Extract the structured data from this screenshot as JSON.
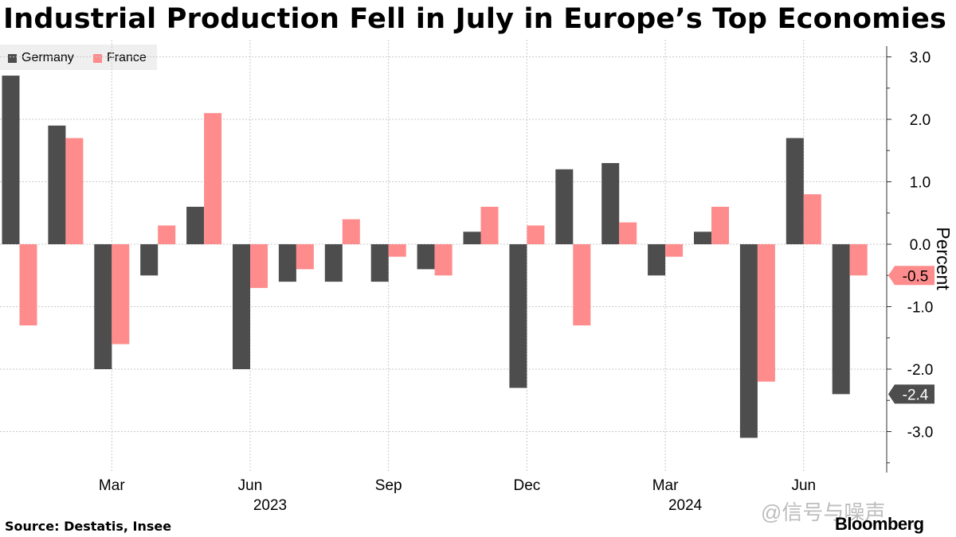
{
  "title": "Industrial Production Fell in July in Europe’s Top Economies",
  "source": "Source: Destatis, Insee",
  "brand": "Bloomberg",
  "watermark": "@信号与噪声",
  "chart_data": {
    "type": "bar",
    "categories": [
      "Jan 2023",
      "Feb 2023",
      "Mar 2023",
      "Apr 2023",
      "May 2023",
      "Jun 2023",
      "Jul 2023",
      "Aug 2023",
      "Sep 2023",
      "Oct 2023",
      "Nov 2023",
      "Dec 2023",
      "Jan 2024",
      "Feb 2024",
      "Mar 2024",
      "Apr 2024",
      "May 2024",
      "Jun 2024",
      "Jul 2024"
    ],
    "series": [
      {
        "name": "Germany",
        "color": "#4d4d4d",
        "values": [
          2.7,
          1.9,
          -2.0,
          -0.5,
          0.6,
          -2.0,
          -0.6,
          -0.6,
          -0.6,
          -0.4,
          0.2,
          -2.3,
          1.2,
          1.3,
          -0.5,
          0.2,
          -3.1,
          1.7,
          -2.4
        ]
      },
      {
        "name": "France",
        "color": "#ff8c8c",
        "values": [
          -1.3,
          1.7,
          -1.6,
          0.3,
          2.1,
          -0.7,
          -0.4,
          0.4,
          -0.2,
          -0.5,
          0.6,
          0.3,
          -1.3,
          0.35,
          -0.2,
          0.6,
          -2.2,
          0.8,
          -0.5
        ]
      }
    ],
    "x_tick_labels": [
      "Mar",
      "Jun",
      "Sep",
      "Dec",
      "Mar",
      "Jun"
    ],
    "x_tick_indices": [
      2,
      5,
      8,
      11,
      14,
      17
    ],
    "year_labels": [
      "2023",
      "2024"
    ],
    "year_label_indices": [
      5,
      14
    ],
    "y_ticks": [
      3.0,
      2.0,
      1.0,
      0.0,
      -1.0,
      -2.0,
      -3.0
    ],
    "y_tick_labels": [
      "3.0",
      "2.0",
      "1.0",
      "0.0",
      "-1.0",
      "-2.0",
      "-3.0"
    ],
    "ylim": [
      -3.65,
      3.2
    ],
    "ylabel": "Percent",
    "last_value_labels": [
      {
        "series": "France",
        "value": -0.5,
        "text": "-0.5",
        "color": "#ff8c8c",
        "text_color": "#000000"
      },
      {
        "series": "Germany",
        "value": -2.4,
        "text": "-2.4",
        "color": "#4d4d4d",
        "text_color": "#ffffff"
      }
    ],
    "grid": true,
    "legend_position": "top-left"
  }
}
